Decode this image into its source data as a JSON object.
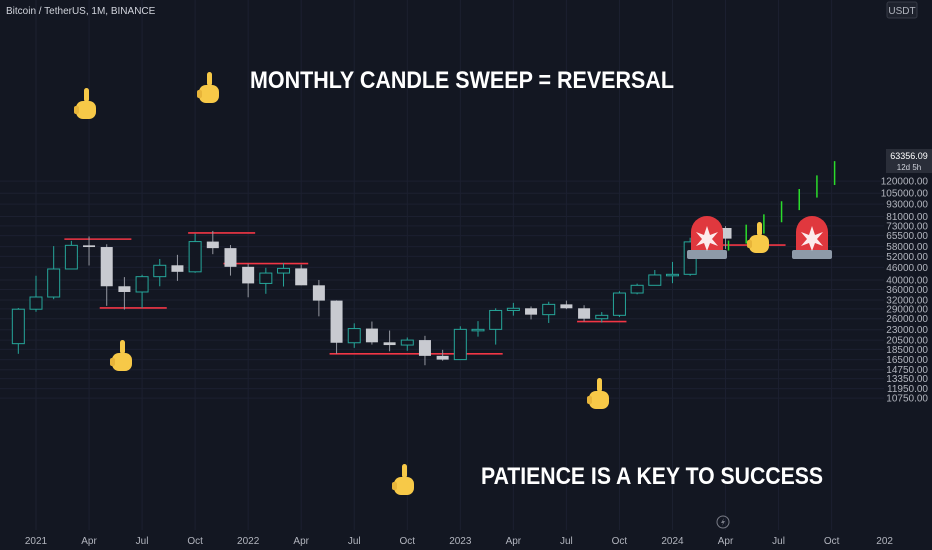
{
  "header": {
    "pair": "Bitcoin / TetherUS, 1M, BINANCE",
    "currency_badge": "USDT"
  },
  "price_badge": {
    "price": "63356.09",
    "countdown": "12d 5h"
  },
  "annotations": {
    "headline": "MONTHLY CANDLE SWEEP = REVERSAL",
    "footer": "PATIENCE IS A KEY TO SUCCESS"
  },
  "colors": {
    "background": "#131722",
    "up": "#26a69a",
    "down": "#c8cad0",
    "sweep_line": "#f23645",
    "projection": "#2bdc2b",
    "text": "#b2b5be",
    "annotation": "#ffffff",
    "emoji": "#f7c948",
    "alarm": "#e0383e"
  },
  "icons": {
    "pointer": "pointing-hand-icon",
    "alarm": "siren-icon",
    "flash": "lightning-icon"
  },
  "chart_data": {
    "type": "candlestick",
    "x_ticks": [
      "2021",
      "Apr",
      "Jul",
      "Oct",
      "2022",
      "Apr",
      "Jul",
      "Oct",
      "2023",
      "Apr",
      "Jul",
      "Oct",
      "2024",
      "Apr",
      "Jul",
      "Oct",
      "202"
    ],
    "y_ticks": [
      "120000.00",
      "105000.00",
      "93000.00",
      "81000.00",
      "73000.00",
      "65500.00",
      "58000.00",
      "52000.00",
      "46000.00",
      "40000.00",
      "36000.00",
      "32000.00",
      "29000.00",
      "26000.00",
      "23000.00",
      "20500.00",
      "18500.00",
      "16500.00",
      "14750.00",
      "13350.00",
      "11950.00",
      "10750.00"
    ],
    "ylim": [
      10000,
      140000
    ],
    "scale": "log",
    "candles": [
      {
        "t": "2020-12",
        "o": 19700,
        "h": 29300,
        "l": 17600,
        "c": 28900
      },
      {
        "t": "2021-01",
        "o": 28900,
        "h": 41900,
        "l": 28100,
        "c": 33100
      },
      {
        "t": "2021-02",
        "o": 33100,
        "h": 58300,
        "l": 32300,
        "c": 45200
      },
      {
        "t": "2021-03",
        "o": 45200,
        "h": 61800,
        "l": 45000,
        "c": 58800
      },
      {
        "t": "2021-04",
        "o": 58800,
        "h": 64900,
        "l": 47000,
        "c": 57700
      },
      {
        "t": "2021-05",
        "o": 57700,
        "h": 59500,
        "l": 30000,
        "c": 37300
      },
      {
        "t": "2021-06",
        "o": 37300,
        "h": 41300,
        "l": 28800,
        "c": 35000
      },
      {
        "t": "2021-07",
        "o": 35000,
        "h": 42400,
        "l": 29300,
        "c": 41500
      },
      {
        "t": "2021-08",
        "o": 41500,
        "h": 50500,
        "l": 37300,
        "c": 47100
      },
      {
        "t": "2021-09",
        "o": 47100,
        "h": 52900,
        "l": 39600,
        "c": 43800
      },
      {
        "t": "2021-10",
        "o": 43800,
        "h": 67000,
        "l": 43300,
        "c": 61300
      },
      {
        "t": "2021-11",
        "o": 61300,
        "h": 69000,
        "l": 53300,
        "c": 57000
      },
      {
        "t": "2021-12",
        "o": 57000,
        "h": 59000,
        "l": 42000,
        "c": 46300
      },
      {
        "t": "2022-01",
        "o": 46300,
        "h": 47900,
        "l": 33000,
        "c": 38500
      },
      {
        "t": "2022-02",
        "o": 38500,
        "h": 45800,
        "l": 34300,
        "c": 43200
      },
      {
        "t": "2022-03",
        "o": 43200,
        "h": 48200,
        "l": 37200,
        "c": 45500
      },
      {
        "t": "2022-04",
        "o": 45500,
        "h": 47400,
        "l": 37700,
        "c": 37700
      },
      {
        "t": "2022-05",
        "o": 37700,
        "h": 40000,
        "l": 26700,
        "c": 31800
      },
      {
        "t": "2022-06",
        "o": 31800,
        "h": 31900,
        "l": 17600,
        "c": 19900
      },
      {
        "t": "2022-07",
        "o": 19900,
        "h": 24700,
        "l": 18800,
        "c": 23300
      },
      {
        "t": "2022-08",
        "o": 23300,
        "h": 25200,
        "l": 19500,
        "c": 20000
      },
      {
        "t": "2022-09",
        "o": 20000,
        "h": 22800,
        "l": 18100,
        "c": 19400
      },
      {
        "t": "2022-10",
        "o": 19400,
        "h": 21100,
        "l": 18200,
        "c": 20500
      },
      {
        "t": "2022-11",
        "o": 20500,
        "h": 21500,
        "l": 15500,
        "c": 17200
      },
      {
        "t": "2022-12",
        "o": 17200,
        "h": 18400,
        "l": 16300,
        "c": 16500
      },
      {
        "t": "2023-01",
        "o": 16500,
        "h": 23900,
        "l": 16500,
        "c": 23100
      },
      {
        "t": "2023-02",
        "o": 23100,
        "h": 25300,
        "l": 21300,
        "c": 23100
      },
      {
        "t": "2023-03",
        "o": 23100,
        "h": 29200,
        "l": 19500,
        "c": 28500
      },
      {
        "t": "2023-04",
        "o": 28500,
        "h": 31000,
        "l": 26900,
        "c": 29200
      },
      {
        "t": "2023-05",
        "o": 29200,
        "h": 29800,
        "l": 25800,
        "c": 27200
      },
      {
        "t": "2023-06",
        "o": 27200,
        "h": 31400,
        "l": 24800,
        "c": 30500
      },
      {
        "t": "2023-07",
        "o": 30500,
        "h": 31800,
        "l": 28900,
        "c": 29200
      },
      {
        "t": "2023-08",
        "o": 29200,
        "h": 30200,
        "l": 25200,
        "c": 26000
      },
      {
        "t": "2023-09",
        "o": 26000,
        "h": 28000,
        "l": 24900,
        "c": 27000
      },
      {
        "t": "2023-10",
        "o": 27000,
        "h": 35300,
        "l": 26500,
        "c": 34600
      },
      {
        "t": "2023-11",
        "o": 34600,
        "h": 38400,
        "l": 34100,
        "c": 37700
      },
      {
        "t": "2023-12",
        "o": 37700,
        "h": 44700,
        "l": 37600,
        "c": 42300
      },
      {
        "t": "2024-01",
        "o": 42300,
        "h": 48900,
        "l": 38600,
        "c": 42600
      },
      {
        "t": "2024-02",
        "o": 42600,
        "h": 64000,
        "l": 41900,
        "c": 61100
      },
      {
        "t": "2024-03",
        "o": 61100,
        "h": 73800,
        "l": 59000,
        "c": 71300
      },
      {
        "t": "2024-04",
        "o": 71300,
        "h": 72800,
        "l": 56500,
        "c": 63356
      }
    ],
    "projection_wicks": [
      {
        "t": "2024-04",
        "h": 62000,
        "l": 55500
      },
      {
        "t": "2024-05",
        "h": 74000,
        "l": 60000
      },
      {
        "t": "2024-06",
        "h": 83000,
        "l": 67000
      },
      {
        "t": "2024-07",
        "h": 96000,
        "l": 76000
      },
      {
        "t": "2024-08",
        "h": 110000,
        "l": 87000
      },
      {
        "t": "2024-09",
        "h": 128000,
        "l": 100000
      },
      {
        "t": "2024-10",
        "h": 150000,
        "l": 115000
      }
    ],
    "sweep_levels": [
      {
        "from": "2021-03",
        "to": "2021-06",
        "price": 63000
      },
      {
        "from": "2021-05",
        "to": "2021-08",
        "price": 29300
      },
      {
        "from": "2021-10",
        "to": "2022-01",
        "price": 67500
      },
      {
        "from": "2021-12",
        "to": "2022-04",
        "price": 48000
      },
      {
        "from": "2022-06",
        "to": "2023-03",
        "price": 17600
      },
      {
        "from": "2023-08",
        "to": "2023-10",
        "price": 25200
      },
      {
        "from": "2024-04",
        "to": "2024-07",
        "price": 59000
      }
    ]
  }
}
